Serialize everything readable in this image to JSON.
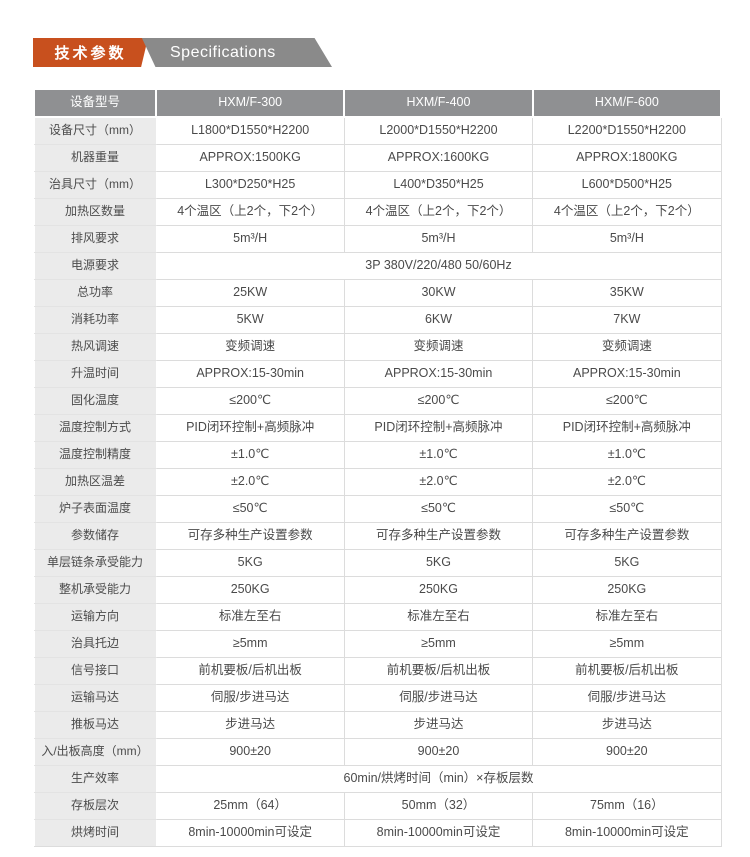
{
  "header": {
    "title_zh": "技术参数",
    "title_en": "Specifications"
  },
  "colors": {
    "accent_orange": "#c8501e",
    "badge_gray": "#8a8a8a",
    "table_header_bg": "#8f9092",
    "label_cell_bg": "#ebebeb",
    "cell_border": "#dcdcdc",
    "text": "#4c4c4c"
  },
  "table": {
    "columns": [
      "设备型号",
      "HXM/F-300",
      "HXM/F-400",
      "HXM/F-600"
    ],
    "rows": [
      {
        "label": "设备尺寸（mm）",
        "values": [
          "L1800*D1550*H2200",
          "L2000*D1550*H2200",
          "L2200*D1550*H2200"
        ]
      },
      {
        "label": "机器重量",
        "values": [
          "APPROX:1500KG",
          "APPROX:1600KG",
          "APPROX:1800KG"
        ]
      },
      {
        "label": "治具尺寸（mm）",
        "values": [
          "L300*D250*H25",
          "L400*D350*H25",
          "L600*D500*H25"
        ]
      },
      {
        "label": "加热区数量",
        "values": [
          "4个温区（上2个，下2个）",
          "4个温区（上2个，下2个）",
          "4个温区（上2个，下2个）"
        ]
      },
      {
        "label": "排风要求",
        "values": [
          "5m³/H",
          "5m³/H",
          "5m³/H"
        ]
      },
      {
        "label": "电源要求",
        "values": [
          "3P 380V/220/480 50/60Hz"
        ]
      },
      {
        "label": "总功率",
        "values": [
          "25KW",
          "30KW",
          "35KW"
        ]
      },
      {
        "label": "消耗功率",
        "values": [
          "5KW",
          "6KW",
          "7KW"
        ]
      },
      {
        "label": "热风调速",
        "values": [
          "变频调速",
          "变频调速",
          "变频调速"
        ]
      },
      {
        "label": "升温时间",
        "values": [
          "APPROX:15-30min",
          "APPROX:15-30min",
          "APPROX:15-30min"
        ]
      },
      {
        "label": "固化温度",
        "values": [
          "≤200℃",
          "≤200℃",
          "≤200℃"
        ]
      },
      {
        "label": "温度控制方式",
        "values": [
          "PID闭环控制+高频脉冲",
          "PID闭环控制+高频脉冲",
          "PID闭环控制+高频脉冲"
        ]
      },
      {
        "label": "温度控制精度",
        "values": [
          "±1.0℃",
          "±1.0℃",
          "±1.0℃"
        ]
      },
      {
        "label": "加热区温差",
        "values": [
          "±2.0℃",
          "±2.0℃",
          "±2.0℃"
        ]
      },
      {
        "label": "炉子表面温度",
        "values": [
          "≤50℃",
          "≤50℃",
          "≤50℃"
        ]
      },
      {
        "label": "参数储存",
        "values": [
          "可存多种生产设置参数",
          "可存多种生产设置参数",
          "可存多种生产设置参数"
        ]
      },
      {
        "label": "单层链条承受能力",
        "values": [
          "5KG",
          "5KG",
          "5KG"
        ]
      },
      {
        "label": "整机承受能力",
        "values": [
          "250KG",
          "250KG",
          "250KG"
        ]
      },
      {
        "label": "运输方向",
        "values": [
          "标准左至右",
          "标准左至右",
          "标准左至右"
        ]
      },
      {
        "label": "治具托边",
        "values": [
          "≥5mm",
          "≥5mm",
          "≥5mm"
        ]
      },
      {
        "label": "信号接口",
        "values": [
          "前机要板/后机出板",
          "前机要板/后机出板",
          "前机要板/后机出板"
        ]
      },
      {
        "label": "运输马达",
        "values": [
          "伺服/步进马达",
          "伺服/步进马达",
          "伺服/步进马达"
        ]
      },
      {
        "label": "推板马达",
        "values": [
          "步进马达",
          "步进马达",
          "步进马达"
        ]
      },
      {
        "label": "入/出板高度（mm）",
        "values": [
          "900±20",
          "900±20",
          "900±20"
        ]
      },
      {
        "label": "生产效率",
        "values": [
          "60min/烘烤时间（min）×存板层数"
        ]
      },
      {
        "label": "存板层次",
        "values": [
          "25mm（64）",
          "50mm（32）",
          "75mm（16）"
        ]
      },
      {
        "label": "烘烤时间",
        "values": [
          "8min-10000min可设定",
          "8min-10000min可设定",
          "8min-10000min可设定"
        ]
      }
    ]
  }
}
